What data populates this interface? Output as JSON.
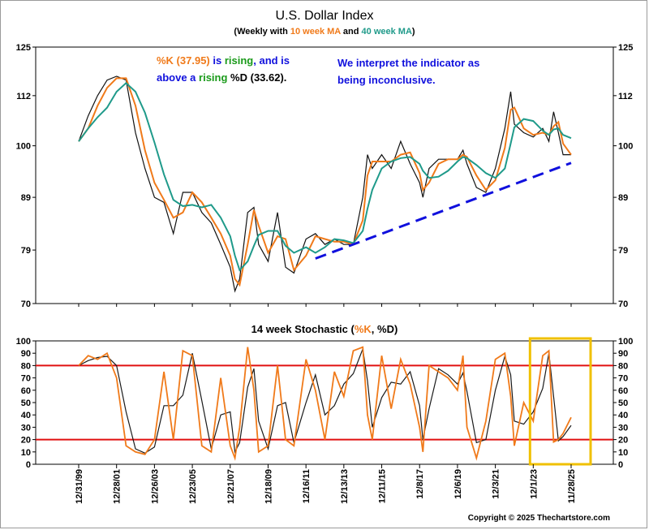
{
  "chart_data": [
    {
      "type": "line",
      "title": "U.S. Dollar Index",
      "subtitle": {
        "prefix": "(Weekly with ",
        "ma10": "10 week MA",
        "mid": " and ",
        "ma40": "40 week MA",
        "suffix": ")"
      },
      "y_ticks": [
        "125",
        "112",
        "100",
        "89",
        "79",
        "70"
      ],
      "ylim": [
        70,
        125
      ],
      "y_scale": "log",
      "series": [
        {
          "name": "10 week MA",
          "color": "#f07a1a"
        },
        {
          "name": "40 week MA",
          "color": "#1f9a8a"
        }
      ],
      "x_dates": [
        "1999-12-31",
        "2000-06-30",
        "2000-12-29",
        "2001-06-29",
        "2001-12-28",
        "2002-06-28",
        "2002-12-27",
        "2003-06-27",
        "2003-12-26",
        "2004-06-25",
        "2004-12-24",
        "2005-06-24",
        "2005-12-23",
        "2006-06-23",
        "2006-12-22",
        "2007-06-22",
        "2007-12-21",
        "2008-03-21",
        "2008-06-20",
        "2008-11-21",
        "2009-03-20",
        "2009-06-19",
        "2009-12-18",
        "2010-06-18",
        "2010-11-19",
        "2011-04-29",
        "2011-12-16",
        "2012-06-15",
        "2012-12-14",
        "2013-06-14",
        "2013-12-13",
        "2014-06-13",
        "2014-12-12",
        "2015-03-13",
        "2015-06-12",
        "2015-12-11",
        "2016-06-10",
        "2016-12-09",
        "2017-06-09",
        "2017-12-08",
        "2018-02-09",
        "2018-06-08",
        "2018-12-07",
        "2019-06-07",
        "2019-12-06",
        "2020-03-20",
        "2020-06-05",
        "2020-12-04",
        "2021-06-04",
        "2021-12-03",
        "2022-06-03",
        "2022-09-23",
        "2022-12-02",
        "2023-06-02",
        "2023-12-01",
        "2024-06-01",
        "2024-09-27",
        "2024-12-27",
        "2025-03-28",
        "2025-06-27",
        "2025-11-28"
      ],
      "close": [
        101,
        107,
        112,
        116,
        117,
        116,
        103,
        95,
        89,
        88,
        82,
        90,
        90,
        86,
        84,
        80,
        76,
        72,
        74,
        86,
        87,
        80,
        77,
        86,
        76,
        75,
        81,
        82,
        80,
        81,
        80,
        80,
        89,
        98,
        95,
        98,
        95,
        101,
        96,
        92,
        89,
        95,
        97,
        97,
        97,
        99,
        96,
        91,
        90,
        95,
        104,
        113,
        105,
        103,
        102,
        104,
        101,
        108,
        103,
        98,
        98
      ],
      "annotations": [
        {
          "part1_orange": "%K (37.95)",
          "part1_blue": " is ",
          "part1_green": "rising",
          "part1_blue2": ", and is",
          "part2_blue": "above a ",
          "part2_green": "rising",
          "part2_black": " %D (33.62)."
        },
        {
          "line1": "We interpret the indicator as",
          "line2": "being inconclusive."
        }
      ],
      "trendline": {
        "x_start": "2012-06-15",
        "y_start": 77.5,
        "x_end": "2025-11-28",
        "y_end": 96.2
      }
    },
    {
      "type": "line",
      "title": {
        "prefix": "14 week Stochastic (",
        "k": "%K",
        "sep": ", ",
        "d": "%D",
        "suffix": ")"
      },
      "y_ticks": [
        "100",
        "90",
        "80",
        "70",
        "60",
        "50",
        "40",
        "30",
        "20",
        "10",
        "0"
      ],
      "ylim": [
        0,
        100
      ],
      "levels": [
        80,
        20
      ],
      "series": [
        {
          "name": "%K",
          "color": "#f07a1a"
        },
        {
          "name": "%D",
          "color": "#1a1a1a"
        }
      ],
      "x_dates": [
        "1999-12-31",
        "2000-06-30",
        "2000-12-29",
        "2001-06-29",
        "2001-12-28",
        "2002-06-28",
        "2002-12-27",
        "2003-06-27",
        "2003-12-26",
        "2004-06-25",
        "2004-12-24",
        "2005-06-24",
        "2005-12-23",
        "2006-06-23",
        "2006-12-22",
        "2007-06-22",
        "2007-12-21",
        "2008-03-21",
        "2008-06-20",
        "2008-11-21",
        "2009-03-20",
        "2009-06-19",
        "2009-12-18",
        "2010-06-18",
        "2010-11-19",
        "2011-04-29",
        "2011-12-16",
        "2012-06-15",
        "2012-12-14",
        "2013-06-14",
        "2013-12-13",
        "2014-06-13",
        "2014-12-12",
        "2015-03-13",
        "2015-06-12",
        "2015-12-11",
        "2016-06-10",
        "2016-12-09",
        "2017-06-09",
        "2017-12-08",
        "2018-02-09",
        "2018-06-08",
        "2018-12-07",
        "2019-06-07",
        "2019-12-06",
        "2020-03-20",
        "2020-06-05",
        "2020-12-04",
        "2021-06-04",
        "2021-12-03",
        "2022-06-03",
        "2022-09-23",
        "2022-12-02",
        "2023-06-02",
        "2023-12-01",
        "2024-06-01",
        "2024-09-27",
        "2024-12-27",
        "2025-03-28",
        "2025-06-27",
        "2025-11-28"
      ],
      "k": [
        80,
        88,
        85,
        90,
        70,
        15,
        10,
        8,
        20,
        75,
        20,
        92,
        88,
        15,
        10,
        70,
        15,
        5,
        30,
        95,
        60,
        10,
        15,
        80,
        20,
        15,
        85,
        60,
        20,
        75,
        55,
        92,
        95,
        40,
        20,
        88,
        45,
        85,
        65,
        30,
        10,
        80,
        75,
        70,
        60,
        88,
        30,
        5,
        35,
        85,
        90,
        55,
        15,
        50,
        35,
        88,
        92,
        18,
        20,
        25,
        38
      ],
      "highlight": {
        "x_start": "2023-12-01",
        "x_end": "2025-11-28"
      }
    }
  ],
  "x_ticks": [
    "12/31/99",
    "12/28/01",
    "12/26/03",
    "12/23/05",
    "12/21/07",
    "12/18/09",
    "12/16/11",
    "12/13/13",
    "12/11/15",
    "12/8/17",
    "12/6/19",
    "12/3/21",
    "12/1/23",
    "11/28/25"
  ],
  "copyright": "Copyright © 2025 Thechartstore.com",
  "colors": {
    "orange": "#f07a1a",
    "teal": "#1f9a8a",
    "blue": "#1010dd",
    "green": "#1a9a1a",
    "red": "#e01010",
    "gold": "#f0c000"
  }
}
